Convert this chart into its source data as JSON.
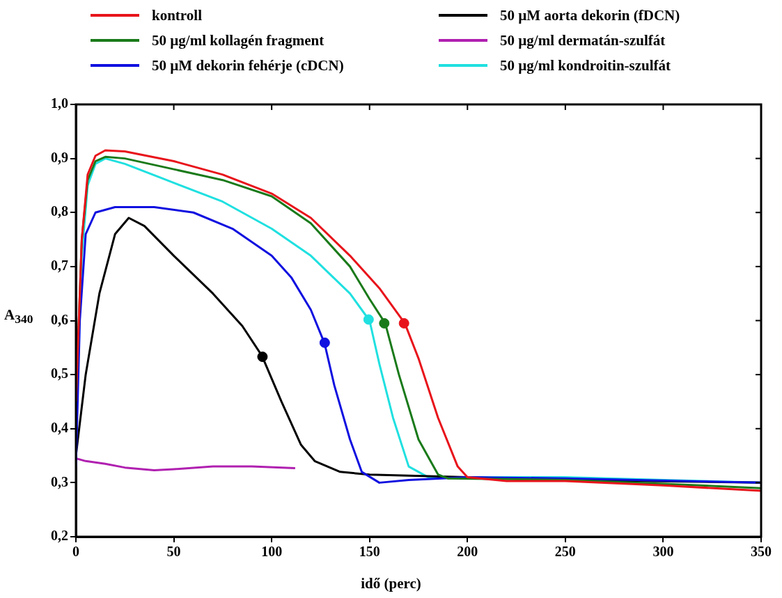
{
  "chart_data": {
    "type": "line",
    "xlabel": "idő (perc)",
    "ylabel": "A$_{340}$",
    "xlim": [
      0,
      350
    ],
    "xticks": [
      0,
      50,
      100,
      150,
      200,
      250,
      300,
      350
    ],
    "ylim": [
      0.2,
      1.0
    ],
    "yticks": [
      {
        "value": 0.2,
        "label": "0,2"
      },
      {
        "value": 0.3,
        "label": "0,3"
      },
      {
        "value": 0.4,
        "label": "0,4"
      },
      {
        "value": 0.5,
        "label": "0,5"
      },
      {
        "value": 0.6,
        "label": "0,6"
      },
      {
        "value": 0.7,
        "label": "0,7"
      },
      {
        "value": 0.8,
        "label": "0,8"
      },
      {
        "value": 0.9,
        "label": "0,9"
      },
      {
        "value": 1.0,
        "label": "1,0"
      }
    ],
    "grid": false,
    "legend": "top",
    "marker": "none",
    "line_style": "solid",
    "series": [
      {
        "name": "kontroll",
        "color": "#e8141b",
        "x": [
          0,
          3,
          6,
          10,
          15,
          25,
          50,
          75,
          100,
          120,
          140,
          155,
          168,
          175,
          185,
          195,
          200,
          220,
          250,
          300,
          350
        ],
        "values": [
          0.45,
          0.75,
          0.87,
          0.905,
          0.915,
          0.913,
          0.895,
          0.87,
          0.835,
          0.79,
          0.72,
          0.66,
          0.595,
          0.53,
          0.42,
          0.33,
          0.31,
          0.303,
          0.303,
          0.295,
          0.285
        ]
      },
      {
        "name": "50 µg/ml kollagén fragment",
        "color": "#1a7a1a",
        "x": [
          0,
          3,
          6,
          10,
          15,
          25,
          50,
          75,
          100,
          120,
          140,
          150,
          158,
          165,
          175,
          185,
          190,
          250,
          300,
          350
        ],
        "values": [
          0.45,
          0.75,
          0.86,
          0.895,
          0.903,
          0.9,
          0.88,
          0.86,
          0.83,
          0.78,
          0.7,
          0.64,
          0.595,
          0.5,
          0.38,
          0.315,
          0.308,
          0.305,
          0.298,
          0.29
        ]
      },
      {
        "name": "50 µM dekorin fehérje (cDCN)",
        "color": "#1010e0",
        "x": [
          0,
          2,
          5,
          10,
          20,
          40,
          60,
          80,
          100,
          110,
          120,
          127,
          132,
          140,
          146,
          155,
          170,
          200,
          250,
          350
        ],
        "values": [
          0.33,
          0.6,
          0.76,
          0.8,
          0.81,
          0.81,
          0.8,
          0.77,
          0.72,
          0.68,
          0.62,
          0.558,
          0.48,
          0.38,
          0.32,
          0.3,
          0.305,
          0.31,
          0.308,
          0.3
        ]
      },
      {
        "name": "50 µM aorta dekorin (fDCN)",
        "color": "#000000",
        "x": [
          0,
          5,
          12,
          20,
          27,
          35,
          50,
          70,
          85,
          95,
          105,
          115,
          122,
          135,
          150,
          200,
          250,
          350
        ],
        "values": [
          0.35,
          0.5,
          0.65,
          0.76,
          0.79,
          0.775,
          0.72,
          0.65,
          0.59,
          0.535,
          0.45,
          0.37,
          0.34,
          0.32,
          0.315,
          0.31,
          0.305,
          0.3
        ]
      },
      {
        "name": "50 µg/ml dermatán-szulfát",
        "color": "#b020b0",
        "x": [
          0,
          5,
          15,
          25,
          40,
          50,
          70,
          90,
          112
        ],
        "values": [
          0.345,
          0.34,
          0.335,
          0.328,
          0.323,
          0.325,
          0.33,
          0.33,
          0.327
        ]
      },
      {
        "name": "50 µg/ml kondroitin-szulfát",
        "color": "#20e0e0",
        "x": [
          0,
          3,
          6,
          10,
          15,
          25,
          50,
          75,
          100,
          120,
          140,
          150,
          155,
          162,
          170,
          180,
          250,
          350
        ],
        "values": [
          0.42,
          0.72,
          0.85,
          0.89,
          0.9,
          0.89,
          0.855,
          0.82,
          0.77,
          0.72,
          0.65,
          0.6,
          0.52,
          0.42,
          0.33,
          0.31,
          0.31,
          0.3
        ]
      },
      {
        "type": "scatter",
        "marker": "circle",
        "color": "#e8141b",
        "x": [
          167.6
        ],
        "values": [
          0.595
        ]
      },
      {
        "type": "scatter",
        "marker": "circle",
        "color": "#1a7a1a",
        "x": [
          157.5
        ],
        "values": [
          0.595
        ]
      },
      {
        "type": "scatter",
        "marker": "circle",
        "color": "#1010e0",
        "x": [
          127.1
        ],
        "values": [
          0.559
        ]
      },
      {
        "type": "scatter",
        "marker": "circle",
        "color": "#000000",
        "x": [
          95.3
        ],
        "values": [
          0.533
        ]
      },
      {
        "type": "scatter",
        "marker": "circle",
        "color": "#20e0e0",
        "x": [
          149.5
        ],
        "values": [
          0.602
        ]
      }
    ]
  }
}
